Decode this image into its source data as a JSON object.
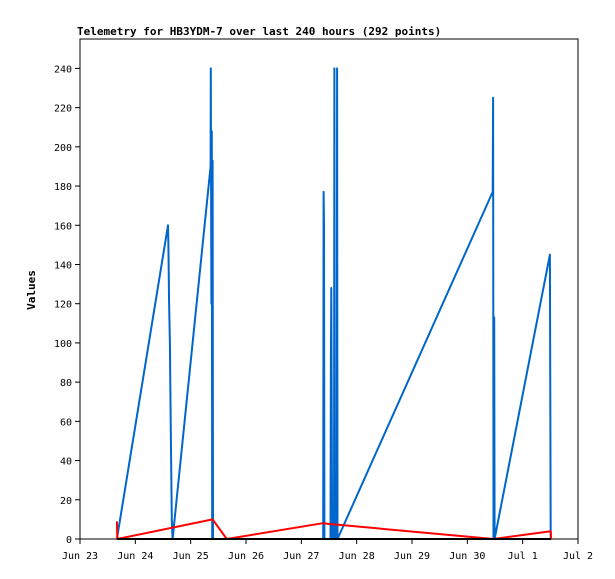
{
  "chart_data": {
    "type": "line",
    "title": "Telemetry for HB3YDM-7 over last 240 hours (292 points)",
    "xlabel": "",
    "ylabel": "Values",
    "xlim": [
      "2024-06-23 00:00",
      "2024-07-02 00:00"
    ],
    "ylim": [
      0,
      255
    ],
    "x_tick_labels": [
      "Jun 23",
      "Jun 24",
      "Jun 25",
      "Jun 26",
      "Jun 27",
      "Jun 28",
      "Jun 29",
      "Jun 30",
      "Jul 1",
      "Jul 2"
    ],
    "y_ticks": [
      0,
      20,
      40,
      60,
      80,
      100,
      120,
      140,
      160,
      180,
      200,
      220,
      240
    ],
    "grid": false,
    "legend": "none",
    "series": [
      {
        "color": "#0066cc",
        "points": [
          [
            "2024-06-23 16:00",
            0
          ],
          [
            "2024-06-24 14:10",
            160
          ],
          [
            "2024-06-24 14:20",
            150
          ],
          [
            "2024-06-24 14:40",
            120
          ],
          [
            "2024-06-24 15:00",
            100
          ],
          [
            "2024-06-24 15:20",
            60
          ],
          [
            "2024-06-24 15:50",
            10
          ],
          [
            "2024-06-24 16:10",
            0
          ],
          [
            "2024-06-25 08:40",
            190
          ],
          [
            "2024-06-25 08:45",
            240
          ],
          [
            "2024-06-25 09:00",
            120
          ],
          [
            "2024-06-25 09:10",
            208
          ],
          [
            "2024-06-25 09:20",
            0
          ],
          [
            "2024-06-25 09:30",
            193
          ],
          [
            "2024-06-25 09:40",
            0
          ],
          [
            "2024-06-27 09:30",
            0
          ],
          [
            "2024-06-27 09:40",
            177
          ],
          [
            "2024-06-27 09:50",
            160
          ],
          [
            "2024-06-27 10:00",
            0
          ],
          [
            "2024-06-27 12:40",
            0
          ],
          [
            "2024-06-27 12:50",
            90
          ],
          [
            "2024-06-27 13:00",
            128
          ],
          [
            "2024-06-27 13:20",
            0
          ],
          [
            "2024-06-27 14:10",
            0
          ],
          [
            "2024-06-27 14:20",
            240
          ],
          [
            "2024-06-27 14:30",
            0
          ],
          [
            "2024-06-27 15:20",
            0
          ],
          [
            "2024-06-27 15:30",
            240
          ],
          [
            "2024-06-27 15:40",
            0
          ],
          [
            "2024-06-30 11:00",
            177
          ],
          [
            "2024-06-30 11:10",
            225
          ],
          [
            "2024-06-30 11:20",
            0
          ],
          [
            "2024-06-30 11:40",
            113
          ],
          [
            "2024-06-30 11:50",
            0
          ],
          [
            "2024-07-01 11:50",
            145
          ],
          [
            "2024-07-01 12:00",
            72
          ],
          [
            "2024-07-01 12:10",
            0
          ]
        ]
      },
      {
        "color": "#ff0000",
        "points": [
          [
            "2024-06-23 16:00",
            9
          ],
          [
            "2024-06-23 16:10",
            0
          ],
          [
            "2024-06-25 09:30",
            10
          ],
          [
            "2024-06-25 15:40",
            0
          ],
          [
            "2024-06-27 09:00",
            8
          ],
          [
            "2024-06-30 11:20",
            0
          ],
          [
            "2024-07-01 12:10",
            4
          ],
          [
            "2024-07-01 12:20",
            0
          ]
        ]
      },
      {
        "color": "#000000",
        "points": [
          [
            "2024-06-23 16:00",
            0
          ],
          [
            "2024-07-01 12:20",
            0
          ]
        ]
      }
    ]
  }
}
